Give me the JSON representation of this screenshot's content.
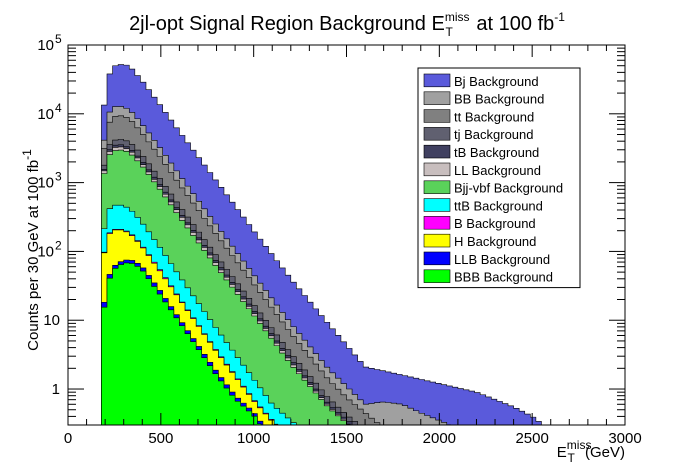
{
  "chart_data": {
    "type": "area",
    "stacked": true,
    "title": "2jl-opt Signal Region Background E",
    "title_sub": "T",
    "title_sup": "miss",
    "title_tail": " at 100 fb",
    "title_tail_sup": "-1",
    "xlabel": "E",
    "xlabel_sub": "T",
    "xlabel_sup": "miss",
    "xlabel_unit": " (GeV)",
    "ylabel": "Counts per 30 GeV at 100 fb",
    "ylabel_sup": "-1",
    "x_range": [
      0,
      3000
    ],
    "y_range": [
      0.3,
      100000
    ],
    "y_scale": "log",
    "bin_width": 30,
    "x_ticks": [
      {
        "value": 0,
        "label": "0"
      },
      {
        "value": 500,
        "label": "500"
      },
      {
        "value": 1000,
        "label": "1000"
      },
      {
        "value": 1500,
        "label": "1500"
      },
      {
        "value": 2000,
        "label": "2000"
      },
      {
        "value": 2500,
        "label": "2500"
      },
      {
        "value": 3000,
        "label": "3000"
      }
    ],
    "y_ticks": [
      {
        "value": 1,
        "label": "1",
        "sup": ""
      },
      {
        "value": 10,
        "label": "10",
        "sup": ""
      },
      {
        "value": 100,
        "label": "10",
        "sup": "2"
      },
      {
        "value": 1000,
        "label": "10",
        "sup": "3"
      },
      {
        "value": 10000,
        "label": "10",
        "sup": "4"
      },
      {
        "value": 100000,
        "label": "10",
        "sup": "5"
      }
    ],
    "legend_position": "top-right",
    "series": [
      {
        "name": "Bj Background",
        "color": "#5a5adb",
        "points": [
          [
            180,
            6000
          ],
          [
            210,
            30000
          ],
          [
            240,
            48000
          ],
          [
            270,
            52000
          ],
          [
            300,
            52000
          ],
          [
            330,
            50000
          ],
          [
            360,
            40000
          ],
          [
            400,
            30000
          ],
          [
            500,
            13000
          ],
          [
            600,
            5500
          ],
          [
            800,
            1050
          ],
          [
            1000,
            200
          ],
          [
            1200,
            40
          ],
          [
            1400,
            9
          ],
          [
            1600,
            2.1
          ],
          [
            1800,
            1.6
          ],
          [
            2000,
            1.2
          ],
          [
            2200,
            0.9
          ],
          [
            2400,
            0.55
          ],
          [
            2500,
            0.4
          ],
          [
            2560,
            0.3
          ]
        ]
      },
      {
        "name": "BB Background",
        "color": "#a0a0a0",
        "points": [
          [
            180,
            1900
          ],
          [
            210,
            9000
          ],
          [
            240,
            12500
          ],
          [
            270,
            13000
          ],
          [
            300,
            12500
          ],
          [
            330,
            11500
          ],
          [
            360,
            9500
          ],
          [
            400,
            7000
          ],
          [
            500,
            3100
          ],
          [
            600,
            1300
          ],
          [
            800,
            240
          ],
          [
            1000,
            46
          ],
          [
            1200,
            9
          ],
          [
            1400,
            2.0
          ],
          [
            1600,
            0.6
          ],
          [
            1700,
            0.65
          ],
          [
            1800,
            0.6
          ],
          [
            1900,
            0.45
          ],
          [
            2000,
            0.35
          ],
          [
            2060,
            0.3
          ]
        ]
      },
      {
        "name": "tt Background",
        "color": "#808080",
        "points": [
          [
            180,
            1500
          ],
          [
            210,
            6500
          ],
          [
            240,
            8800
          ],
          [
            270,
            9500
          ],
          [
            300,
            9200
          ],
          [
            330,
            8500
          ],
          [
            360,
            7000
          ],
          [
            400,
            5200
          ],
          [
            500,
            2300
          ],
          [
            600,
            950
          ],
          [
            800,
            175
          ],
          [
            1000,
            34
          ],
          [
            1200,
            6.5
          ],
          [
            1400,
            1.4
          ],
          [
            1500,
            0.75
          ],
          [
            1600,
            0.45
          ],
          [
            1680,
            0.3
          ]
        ]
      },
      {
        "name": "tj Background",
        "color": "#606070",
        "points": [
          [
            180,
            1000
          ],
          [
            210,
            3200
          ],
          [
            240,
            4000
          ],
          [
            270,
            4300
          ],
          [
            300,
            4200
          ],
          [
            330,
            3900
          ],
          [
            360,
            3300
          ],
          [
            400,
            2500
          ],
          [
            500,
            1100
          ],
          [
            600,
            460
          ],
          [
            800,
            86
          ],
          [
            1000,
            17
          ],
          [
            1200,
            3.3
          ],
          [
            1400,
            0.75
          ],
          [
            1500,
            0.42
          ],
          [
            1570,
            0.3
          ]
        ]
      },
      {
        "name": "tB Background",
        "color": "#404060",
        "points": [
          [
            180,
            900
          ],
          [
            210,
            2700
          ],
          [
            240,
            3400
          ],
          [
            270,
            3600
          ],
          [
            300,
            3500
          ],
          [
            330,
            3200
          ],
          [
            360,
            2700
          ],
          [
            400,
            2050
          ],
          [
            500,
            900
          ],
          [
            600,
            380
          ],
          [
            800,
            71
          ],
          [
            1000,
            14
          ],
          [
            1200,
            2.7
          ],
          [
            1400,
            0.62
          ],
          [
            1500,
            0.36
          ],
          [
            1540,
            0.3
          ]
        ]
      },
      {
        "name": "LL Background",
        "color": "#c8bebe",
        "points": [
          [
            180,
            860
          ],
          [
            210,
            2550
          ],
          [
            240,
            3150
          ],
          [
            270,
            3350
          ],
          [
            300,
            3250
          ],
          [
            330,
            3000
          ],
          [
            360,
            2550
          ],
          [
            400,
            1900
          ],
          [
            500,
            840
          ],
          [
            600,
            355
          ],
          [
            800,
            66
          ],
          [
            1000,
            13
          ],
          [
            1200,
            2.5
          ],
          [
            1400,
            0.58
          ],
          [
            1520,
            0.3
          ]
        ]
      },
      {
        "name": "Bjj-vbf Background",
        "color": "#5ad25a",
        "points": [
          [
            180,
            800
          ],
          [
            210,
            2300
          ],
          [
            240,
            2850
          ],
          [
            270,
            3000
          ],
          [
            300,
            2950
          ],
          [
            330,
            2750
          ],
          [
            360,
            2300
          ],
          [
            400,
            1750
          ],
          [
            500,
            770
          ],
          [
            600,
            320
          ],
          [
            800,
            60
          ],
          [
            1000,
            12
          ],
          [
            1200,
            2.3
          ],
          [
            1400,
            0.55
          ],
          [
            1500,
            0.32
          ],
          [
            1520,
            0.3
          ]
        ]
      },
      {
        "name": "ttB Background",
        "color": "#00ffff",
        "points": [
          [
            180,
            120
          ],
          [
            210,
            380
          ],
          [
            240,
            460
          ],
          [
            270,
            480
          ],
          [
            300,
            460
          ],
          [
            330,
            420
          ],
          [
            360,
            350
          ],
          [
            400,
            260
          ],
          [
            500,
            110
          ],
          [
            600,
            44
          ],
          [
            800,
            7.5
          ],
          [
            1000,
            1.4
          ],
          [
            1100,
            0.6
          ],
          [
            1200,
            0.35
          ],
          [
            1230,
            0.3
          ]
        ]
      },
      {
        "name": "B Background",
        "color": "#ff00ff",
        "points": [
          [
            180,
            56
          ],
          [
            210,
            170
          ],
          [
            240,
            205
          ],
          [
            270,
            215
          ],
          [
            300,
            205
          ],
          [
            330,
            190
          ],
          [
            360,
            160
          ],
          [
            400,
            120
          ],
          [
            500,
            52
          ],
          [
            600,
            21
          ],
          [
            800,
            3.6
          ],
          [
            1000,
            0.7
          ],
          [
            1100,
            0.35
          ],
          [
            1130,
            0.3
          ]
        ]
      },
      {
        "name": "H Background",
        "color": "#ffff00",
        "points": [
          [
            180,
            55
          ],
          [
            210,
            165
          ],
          [
            240,
            200
          ],
          [
            270,
            210
          ],
          [
            300,
            200
          ],
          [
            330,
            185
          ],
          [
            360,
            155
          ],
          [
            400,
            117
          ],
          [
            500,
            50
          ],
          [
            600,
            20.5
          ],
          [
            800,
            3.5
          ],
          [
            1000,
            0.68
          ],
          [
            1100,
            0.34
          ],
          [
            1130,
            0.3
          ]
        ]
      },
      {
        "name": "LLB Background",
        "color": "#0000ff",
        "points": [
          [
            180,
            9
          ],
          [
            210,
            37
          ],
          [
            240,
            58
          ],
          [
            270,
            68
          ],
          [
            300,
            74
          ],
          [
            330,
            76
          ],
          [
            360,
            72
          ],
          [
            400,
            60
          ],
          [
            500,
            26
          ],
          [
            600,
            10.5
          ],
          [
            800,
            1.8
          ],
          [
            900,
            0.8
          ],
          [
            1000,
            0.46
          ],
          [
            1050,
            0.3
          ]
        ]
      },
      {
        "name": "BBB Background",
        "color": "#00ff00",
        "points": [
          [
            180,
            7.5
          ],
          [
            210,
            32
          ],
          [
            240,
            52
          ],
          [
            270,
            62
          ],
          [
            300,
            67
          ],
          [
            330,
            69
          ],
          [
            360,
            65
          ],
          [
            400,
            54
          ],
          [
            500,
            23
          ],
          [
            600,
            9.5
          ],
          [
            800,
            1.6
          ],
          [
            900,
            0.72
          ],
          [
            1000,
            0.42
          ],
          [
            1040,
            0.3
          ]
        ]
      }
    ]
  }
}
